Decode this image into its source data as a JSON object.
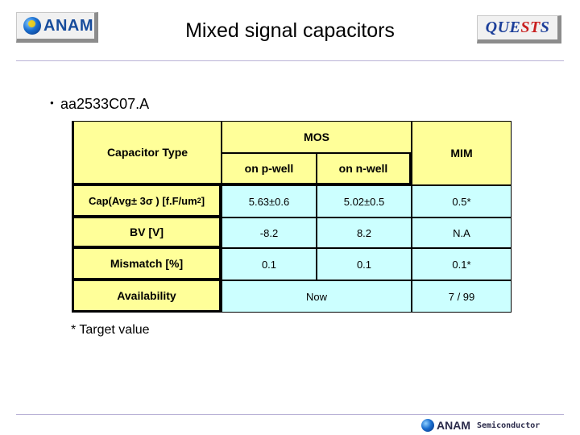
{
  "header": {
    "logo_text": "ANAM",
    "title": "Mixed signal capacitors",
    "quests": {
      "part1": "QUE",
      "part2": "S",
      "part3": "T",
      "part4": "S"
    }
  },
  "section": {
    "bullet": "●",
    "heading": "aa2533C07.A"
  },
  "table": {
    "capacitor_type": "Capacitor Type",
    "mos": "MOS",
    "mim": "MIM",
    "on_p_well": "on p-well",
    "on_n_well": "on n-well",
    "rows": [
      {
        "label": "Cap(Avg± 3σ ) [f.F/um",
        "label_sup": "2",
        "label_end": "]",
        "p_well": "5.63±0.6",
        "n_well": "5.02±0.5",
        "mim": "0.5*"
      },
      {
        "label": "BV [V]",
        "p_well": "-8.2",
        "n_well": "8.2",
        "mim": "N.A"
      },
      {
        "label": "Mismatch [%]",
        "p_well": "0.1",
        "n_well": "0.1",
        "mim": "0.1*"
      },
      {
        "label": "Availability",
        "mos": "Now",
        "mim": "7 / 99"
      }
    ]
  },
  "note": "* Target value",
  "footer": {
    "logo_text": "ANAM",
    "semiconductor": "Semiconductor"
  }
}
